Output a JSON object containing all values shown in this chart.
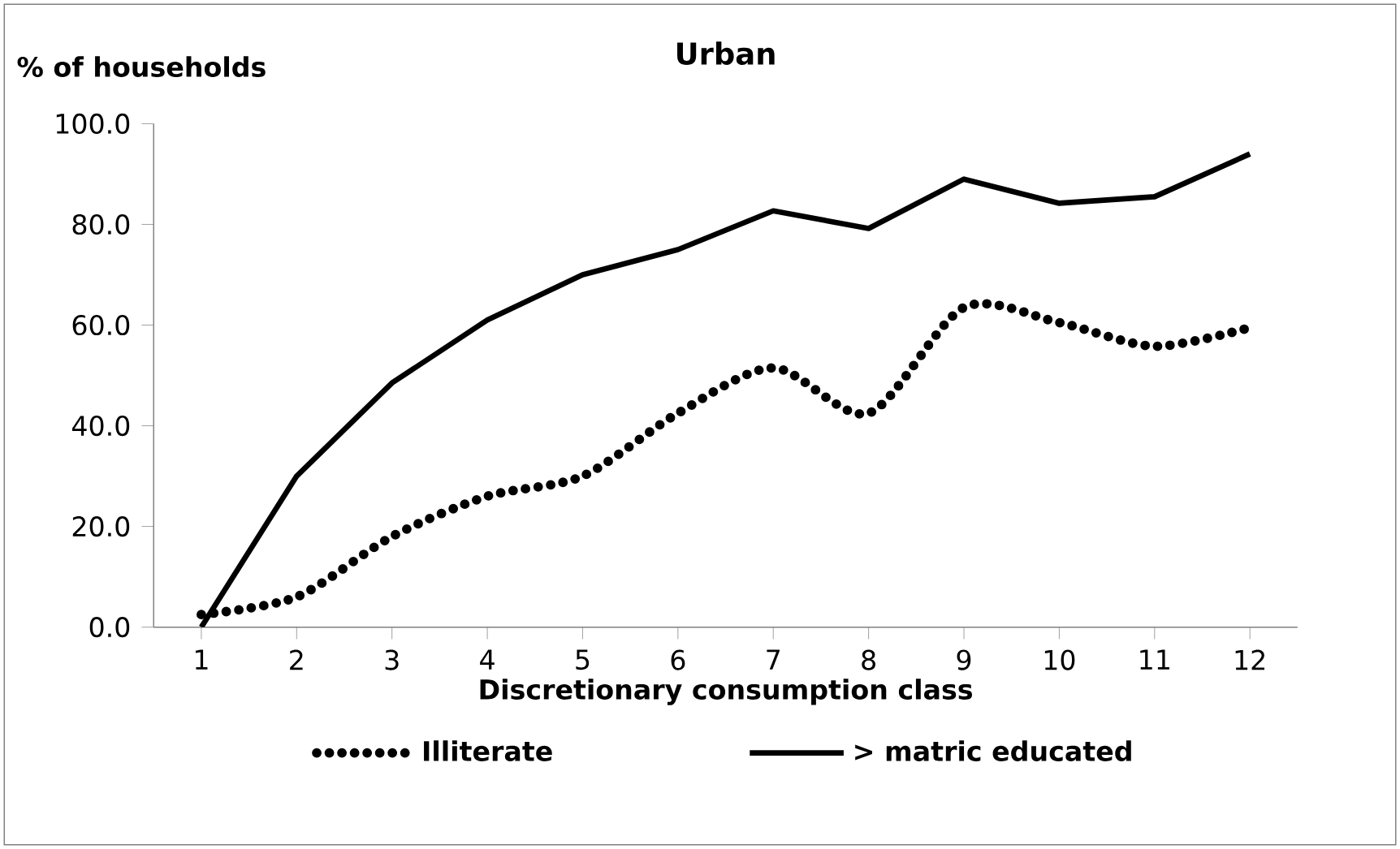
{
  "chart_data": {
    "type": "line",
    "title": "Urban",
    "ylabel": "% of households",
    "xlabel": "Discretionary consumption class",
    "categories": [
      "1",
      "2",
      "3",
      "4",
      "5",
      "6",
      "7",
      "8",
      "9",
      "10",
      "11",
      "12"
    ],
    "series": [
      {
        "name": "Illiterate",
        "color": "#000000",
        "line_style": "dotted",
        "values": [
          2.5,
          6,
          18,
          26,
          30,
          42.5,
          51.5,
          42.5,
          63.5,
          60.5,
          55.8,
          59.5
        ]
      },
      {
        "name": "> matric educated",
        "color": "#000000",
        "line_style": "solid",
        "values": [
          0,
          30,
          48.5,
          61,
          70,
          75,
          82.7,
          79.2,
          89,
          84.2,
          85.5,
          94
        ]
      }
    ],
    "ylim": [
      0,
      100
    ],
    "yticks": [
      {
        "value": 0,
        "label": "0.0"
      },
      {
        "value": 20,
        "label": "20.0"
      },
      {
        "value": 40,
        "label": "40.0"
      },
      {
        "value": 60,
        "label": "60.0"
      },
      {
        "value": 80,
        "label": "80.0"
      },
      {
        "value": 100,
        "label": "100.0"
      }
    ],
    "grid": false,
    "legend": "bottom",
    "marker": "none"
  }
}
